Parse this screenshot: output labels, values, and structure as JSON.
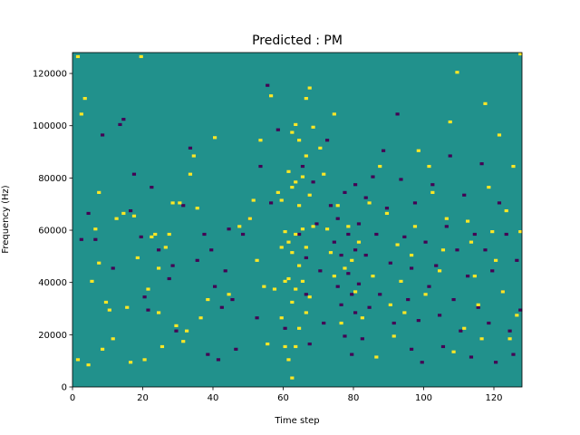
{
  "chart_data": {
    "type": "heatmap",
    "title": "Predicted : PM",
    "xlabel": "Time step",
    "ylabel": "Frequency (Hz)",
    "xlim": [
      0,
      128
    ],
    "ylim": [
      0,
      128000
    ],
    "x_ticks": [
      0,
      20,
      40,
      60,
      80,
      100,
      120
    ],
    "x_tick_labels": [
      "0",
      "20",
      "40",
      "60",
      "80",
      "100",
      "120"
    ],
    "y_ticks": [
      0,
      20000,
      40000,
      60000,
      80000,
      100000,
      120000
    ],
    "y_tick_labels": [
      "0",
      "20000",
      "40000",
      "60000",
      "80000",
      "100000",
      "120000"
    ],
    "grid": false,
    "colormap": "viridis",
    "colors": {
      "background": "#21918c",
      "high": "#fde725",
      "low": "#440154"
    },
    "time_steps": 128,
    "frequency_bins": 128,
    "bin_hz": 1000,
    "background_value": 0,
    "cell_values": {
      "high": 1,
      "low": -1
    },
    "high_cells": [
      [
        1,
        126
      ],
      [
        1,
        10
      ],
      [
        2,
        104
      ],
      [
        3,
        110
      ],
      [
        4,
        8
      ],
      [
        5,
        40
      ],
      [
        6,
        60
      ],
      [
        7,
        47
      ],
      [
        7,
        74
      ],
      [
        8,
        14
      ],
      [
        9,
        32
      ],
      [
        10,
        29
      ],
      [
        11,
        18
      ],
      [
        12,
        64
      ],
      [
        14,
        66
      ],
      [
        15,
        30
      ],
      [
        16,
        9
      ],
      [
        17,
        65
      ],
      [
        18,
        49
      ],
      [
        19,
        126
      ],
      [
        20,
        10
      ],
      [
        21,
        37
      ],
      [
        22,
        57
      ],
      [
        23,
        58
      ],
      [
        24,
        45
      ],
      [
        24,
        28
      ],
      [
        25,
        15
      ],
      [
        26,
        53
      ],
      [
        27,
        58
      ],
      [
        28,
        70
      ],
      [
        29,
        23
      ],
      [
        30,
        70
      ],
      [
        31,
        17
      ],
      [
        32,
        21
      ],
      [
        33,
        81
      ],
      [
        34,
        88
      ],
      [
        35,
        68
      ],
      [
        36,
        26
      ],
      [
        38,
        33
      ],
      [
        40,
        95
      ],
      [
        44,
        35
      ],
      [
        47,
        61
      ],
      [
        50,
        64
      ],
      [
        51,
        71
      ],
      [
        52,
        48
      ],
      [
        53,
        94
      ],
      [
        54,
        38
      ],
      [
        55,
        16
      ],
      [
        56,
        111
      ],
      [
        57,
        37
      ],
      [
        58,
        74
      ],
      [
        59,
        53
      ],
      [
        59,
        71
      ],
      [
        59,
        26
      ],
      [
        60,
        15
      ],
      [
        60,
        59
      ],
      [
        60,
        40
      ],
      [
        61,
        82
      ],
      [
        61,
        55
      ],
      [
        61,
        41
      ],
      [
        61,
        10
      ],
      [
        62,
        97
      ],
      [
        62,
        76
      ],
      [
        62,
        51
      ],
      [
        62,
        32
      ],
      [
        62,
        3
      ],
      [
        63,
        100
      ],
      [
        63,
        78
      ],
      [
        63,
        58
      ],
      [
        63,
        37
      ],
      [
        63,
        15
      ],
      [
        64,
        94
      ],
      [
        64,
        69
      ],
      [
        64,
        46
      ],
      [
        64,
        22
      ],
      [
        65,
        80
      ],
      [
        65,
        60
      ],
      [
        65,
        40
      ],
      [
        66,
        110
      ],
      [
        66,
        88
      ],
      [
        66,
        53
      ],
      [
        66,
        28
      ],
      [
        67,
        114
      ],
      [
        67,
        73
      ],
      [
        67,
        34
      ],
      [
        68,
        99
      ],
      [
        68,
        61
      ],
      [
        70,
        91
      ],
      [
        71,
        81
      ],
      [
        72,
        60
      ],
      [
        73,
        51
      ],
      [
        74,
        42
      ],
      [
        74,
        104
      ],
      [
        75,
        69
      ],
      [
        76,
        24
      ],
      [
        77,
        45
      ],
      [
        78,
        61
      ],
      [
        79,
        48
      ],
      [
        80,
        36
      ],
      [
        81,
        55
      ],
      [
        82,
        26
      ],
      [
        84,
        70
      ],
      [
        85,
        42
      ],
      [
        86,
        11
      ],
      [
        87,
        84
      ],
      [
        89,
        66
      ],
      [
        90,
        31
      ],
      [
        91,
        19
      ],
      [
        92,
        54
      ],
      [
        93,
        40
      ],
      [
        94,
        28
      ],
      [
        96,
        50
      ],
      [
        97,
        61
      ],
      [
        98,
        90
      ],
      [
        100,
        35
      ],
      [
        101,
        84
      ],
      [
        102,
        74
      ],
      [
        104,
        44
      ],
      [
        105,
        52
      ],
      [
        106,
        64
      ],
      [
        107,
        101
      ],
      [
        108,
        13
      ],
      [
        109,
        120
      ],
      [
        111,
        22
      ],
      [
        112,
        63
      ],
      [
        113,
        55
      ],
      [
        114,
        42
      ],
      [
        115,
        31
      ],
      [
        116,
        18
      ],
      [
        117,
        108
      ],
      [
        118,
        76
      ],
      [
        119,
        59
      ],
      [
        120,
        48
      ],
      [
        121,
        96
      ],
      [
        122,
        36
      ],
      [
        123,
        67
      ],
      [
        124,
        18
      ],
      [
        125,
        84
      ],
      [
        126,
        27
      ],
      [
        127,
        59
      ],
      [
        127,
        127
      ]
    ],
    "low_cells": [
      [
        2,
        56
      ],
      [
        4,
        66
      ],
      [
        6,
        56
      ],
      [
        8,
        96
      ],
      [
        11,
        45
      ],
      [
        13,
        100
      ],
      [
        14,
        102
      ],
      [
        16,
        67
      ],
      [
        17,
        81
      ],
      [
        19,
        57
      ],
      [
        20,
        34
      ],
      [
        21,
        29
      ],
      [
        22,
        76
      ],
      [
        24,
        52
      ],
      [
        27,
        41
      ],
      [
        28,
        46
      ],
      [
        29,
        21
      ],
      [
        31,
        69
      ],
      [
        33,
        91
      ],
      [
        35,
        48
      ],
      [
        37,
        58
      ],
      [
        38,
        12
      ],
      [
        39,
        52
      ],
      [
        40,
        38
      ],
      [
        41,
        10
      ],
      [
        42,
        30
      ],
      [
        43,
        44
      ],
      [
        44,
        60
      ],
      [
        45,
        33
      ],
      [
        46,
        14
      ],
      [
        48,
        58
      ],
      [
        50,
        64
      ],
      [
        52,
        26
      ],
      [
        53,
        84
      ],
      [
        55,
        115
      ],
      [
        56,
        70
      ],
      [
        58,
        98
      ],
      [
        60,
        22
      ],
      [
        64,
        58
      ],
      [
        65,
        84
      ],
      [
        66,
        49
      ],
      [
        66,
        35
      ],
      [
        67,
        16
      ],
      [
        68,
        78
      ],
      [
        69,
        62
      ],
      [
        70,
        44
      ],
      [
        71,
        24
      ],
      [
        72,
        94
      ],
      [
        73,
        69
      ],
      [
        74,
        55
      ],
      [
        75,
        38
      ],
      [
        75,
        64
      ],
      [
        76,
        50
      ],
      [
        76,
        31
      ],
      [
        77,
        19
      ],
      [
        77,
        74
      ],
      [
        78,
        58
      ],
      [
        78,
        43
      ],
      [
        79,
        35
      ],
      [
        79,
        12
      ],
      [
        80,
        77
      ],
      [
        80,
        52
      ],
      [
        80,
        28
      ],
      [
        81,
        62
      ],
      [
        81,
        39
      ],
      [
        82,
        18
      ],
      [
        83,
        72
      ],
      [
        83,
        50
      ],
      [
        84,
        30
      ],
      [
        85,
        80
      ],
      [
        86,
        58
      ],
      [
        87,
        35
      ],
      [
        88,
        90
      ],
      [
        89,
        68
      ],
      [
        90,
        47
      ],
      [
        91,
        24
      ],
      [
        92,
        104
      ],
      [
        93,
        79
      ],
      [
        94,
        57
      ],
      [
        95,
        33
      ],
      [
        96,
        14
      ],
      [
        96,
        45
      ],
      [
        97,
        70
      ],
      [
        98,
        25
      ],
      [
        99,
        9
      ],
      [
        100,
        55
      ],
      [
        101,
        38
      ],
      [
        102,
        77
      ],
      [
        103,
        46
      ],
      [
        104,
        27
      ],
      [
        105,
        15
      ],
      [
        106,
        61
      ],
      [
        107,
        88
      ],
      [
        108,
        33
      ],
      [
        109,
        52
      ],
      [
        110,
        21
      ],
      [
        111,
        73
      ],
      [
        112,
        42
      ],
      [
        113,
        11
      ],
      [
        114,
        58
      ],
      [
        115,
        30
      ],
      [
        116,
        85
      ],
      [
        117,
        52
      ],
      [
        118,
        24
      ],
      [
        119,
        44
      ],
      [
        120,
        9
      ],
      [
        121,
        70
      ],
      [
        122,
        36
      ],
      [
        123,
        58
      ],
      [
        124,
        21
      ],
      [
        125,
        12
      ],
      [
        126,
        48
      ],
      [
        127,
        29
      ]
    ]
  }
}
